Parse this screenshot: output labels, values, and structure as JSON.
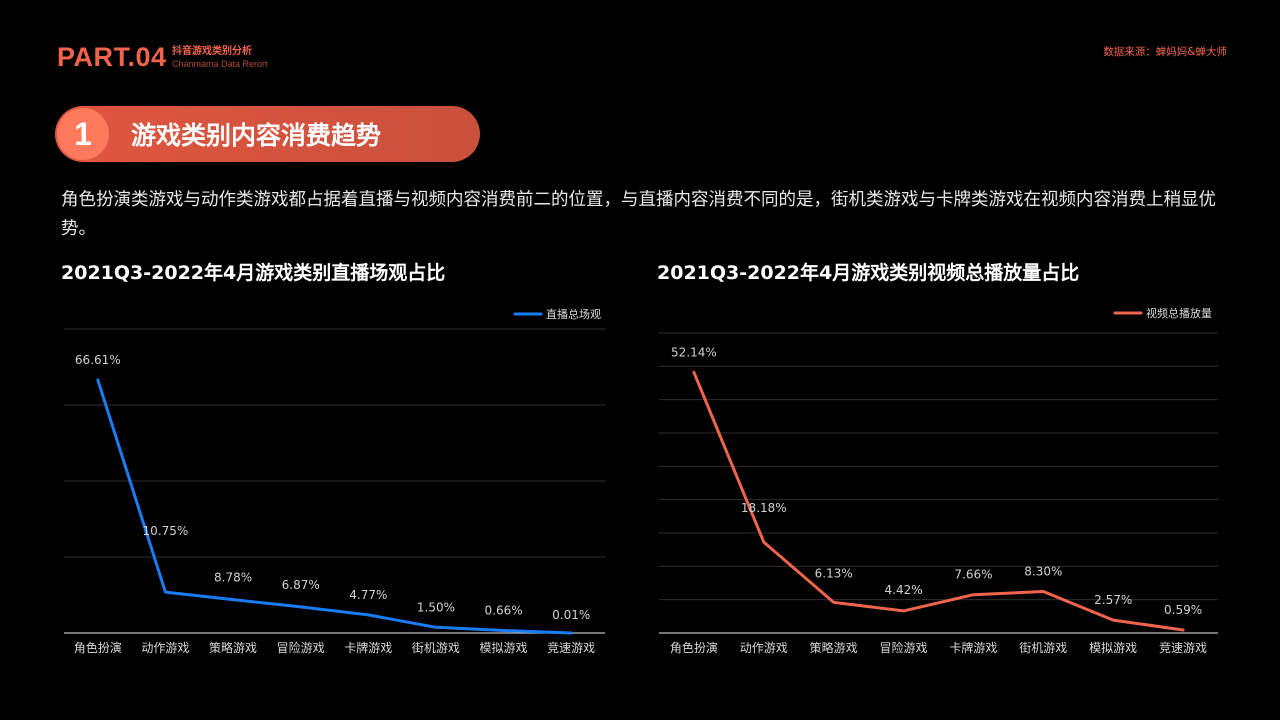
{
  "header": {
    "part": "PART.04",
    "subtitle_cn": "抖音游戏类别分析",
    "subtitle_en": "Chanmama Data Rerort",
    "source": "数据来源：蝉妈妈&蝉大师"
  },
  "section": {
    "number": "1",
    "title": "游戏类别内容消费趋势"
  },
  "description": "角色扮演类游戏与动作类游戏都占据着直播与视频内容消费前二的位置，与直播内容消费不同的是，街机类游戏与卡牌类游戏在视频内容消费上稍显优势。",
  "colors": {
    "accent": "#f0644b",
    "live_line": "#1a7cf5",
    "video_line": "#f0644b"
  },
  "chart_data": [
    {
      "type": "line",
      "title": "2021Q3-2022年4月游戏类别直播场观占比",
      "categories": [
        "角色扮演",
        "动作游戏",
        "策略游戏",
        "冒险游戏",
        "卡牌游戏",
        "街机游戏",
        "模拟游戏",
        "竞速游戏"
      ],
      "series": [
        {
          "name": "直播总场观",
          "values": [
            66.61,
            10.75,
            8.78,
            6.87,
            4.77,
            1.5,
            0.66,
            0.01
          ],
          "labels": [
            "66.61%",
            "10.75%",
            "8.78%",
            "6.87%",
            "4.77%",
            "1.50%",
            "0.66%",
            "0.01%"
          ]
        }
      ],
      "ylim": [
        0,
        80
      ],
      "grid": true,
      "legend": "top-right"
    },
    {
      "type": "line",
      "title": "2021Q3-2022年4月游戏类别视频总播放量占比",
      "categories": [
        "角色扮演",
        "动作游戏",
        "策略游戏",
        "冒险游戏",
        "卡牌游戏",
        "街机游戏",
        "模拟游戏",
        "竞速游戏"
      ],
      "series": [
        {
          "name": "视频总播放量",
          "values": [
            52.14,
            18.18,
            6.13,
            4.42,
            7.66,
            8.3,
            2.57,
            0.59
          ],
          "labels": [
            "52.14%",
            "18.18%",
            "6.13%",
            "4.42%",
            "7.66%",
            "8.30%",
            "2.57%",
            "0.59%"
          ]
        }
      ],
      "ylim": [
        0,
        60
      ],
      "grid": true,
      "legend": "top-right"
    }
  ]
}
